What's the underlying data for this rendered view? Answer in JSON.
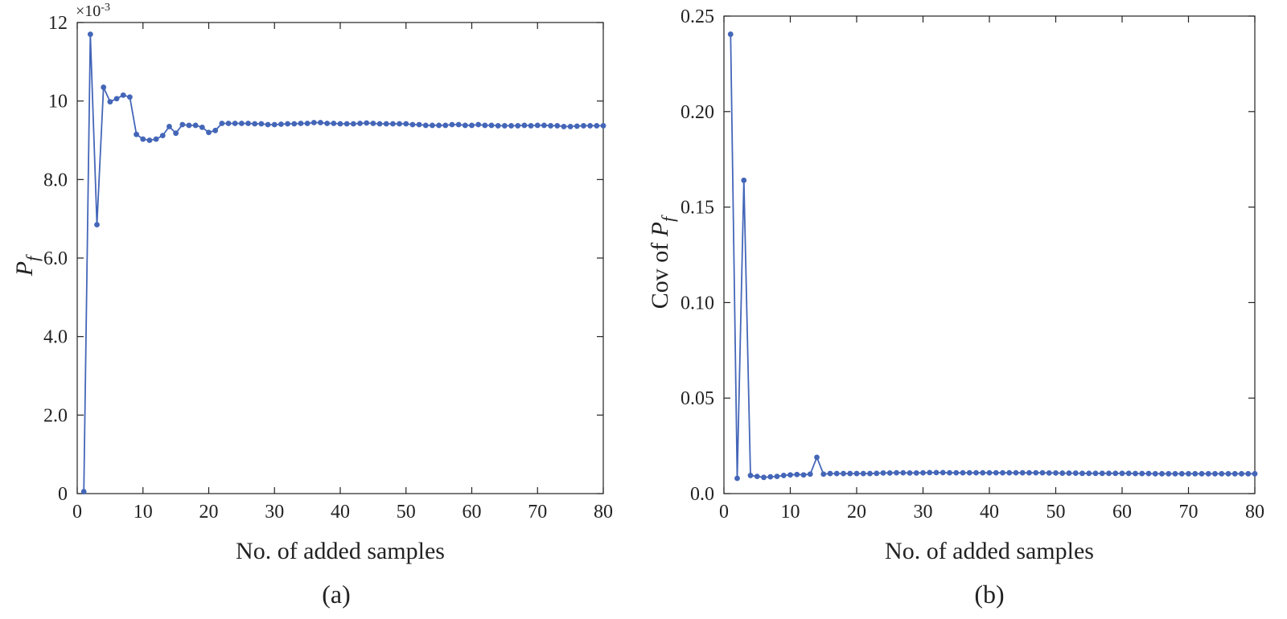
{
  "chart_data": [
    {
      "type": "line",
      "caption": "(a)",
      "xlabel": "No. of added samples",
      "ylabel_main": "P",
      "ylabel_sub": "f",
      "ylabel_prefix": "",
      "y_multiplier": "×10",
      "y_multiplier_exp": "-3",
      "xlim": [
        0,
        80
      ],
      "ylim": [
        0,
        12
      ],
      "x_ticks": [
        0,
        10,
        20,
        30,
        40,
        50,
        60,
        70,
        80
      ],
      "x_tick_labels": [
        "0",
        "10",
        "20",
        "30",
        "40",
        "50",
        "60",
        "70",
        "80"
      ],
      "y_ticks": [
        0,
        2,
        4,
        6,
        8,
        10,
        12
      ],
      "y_tick_labels": [
        "0",
        "2.0",
        "4.0",
        "6.0",
        "8.0",
        "10",
        "12"
      ],
      "color": "#4466b8",
      "series": [
        {
          "x": [
            1,
            2,
            3,
            4,
            5,
            6,
            7,
            8,
            9,
            10,
            11,
            12,
            13,
            14,
            15,
            16,
            17,
            18,
            19,
            20,
            21,
            22,
            23,
            24,
            25,
            26,
            27,
            28,
            29,
            30,
            31,
            32,
            33,
            34,
            35,
            36,
            37,
            38,
            39,
            40,
            41,
            42,
            43,
            44,
            45,
            46,
            47,
            48,
            49,
            50,
            51,
            52,
            53,
            54,
            55,
            56,
            57,
            58,
            59,
            60,
            61,
            62,
            63,
            64,
            65,
            66,
            67,
            68,
            69,
            70,
            71,
            72,
            73,
            74,
            75,
            76,
            77,
            78,
            79,
            80
          ],
          "y": [
            0.05,
            11.7,
            6.85,
            10.35,
            9.98,
            10.06,
            10.15,
            10.1,
            9.15,
            9.03,
            9.0,
            9.03,
            9.12,
            9.35,
            9.18,
            9.4,
            9.38,
            9.38,
            9.33,
            9.2,
            9.25,
            9.43,
            9.43,
            9.43,
            9.43,
            9.43,
            9.42,
            9.42,
            9.4,
            9.4,
            9.41,
            9.42,
            9.42,
            9.43,
            9.43,
            9.45,
            9.45,
            9.43,
            9.43,
            9.42,
            9.42,
            9.42,
            9.43,
            9.44,
            9.43,
            9.42,
            9.42,
            9.42,
            9.42,
            9.42,
            9.4,
            9.4,
            9.38,
            9.38,
            9.38,
            9.38,
            9.4,
            9.4,
            9.38,
            9.38,
            9.4,
            9.38,
            9.38,
            9.37,
            9.37,
            9.37,
            9.37,
            9.38,
            9.37,
            9.38,
            9.38,
            9.37,
            9.37,
            9.35,
            9.35,
            9.36,
            9.37,
            9.37,
            9.37,
            9.37
          ]
        }
      ]
    },
    {
      "type": "line",
      "caption": "(b)",
      "xlabel": "No. of added samples",
      "ylabel_prefix": "Cov of ",
      "ylabel_main": "P",
      "ylabel_sub": "f",
      "xlim": [
        0,
        80
      ],
      "ylim": [
        0,
        0.25
      ],
      "x_ticks": [
        0,
        10,
        20,
        30,
        40,
        50,
        60,
        70,
        80
      ],
      "x_tick_labels": [
        "0",
        "10",
        "20",
        "30",
        "40",
        "50",
        "60",
        "70",
        "80"
      ],
      "y_ticks": [
        0,
        0.05,
        0.1,
        0.15,
        0.2,
        0.25
      ],
      "y_tick_labels": [
        "0.0",
        "0.05",
        "0.10",
        "0.15",
        "0.20",
        "0.25"
      ],
      "color": "#4466b8",
      "series": [
        {
          "x": [
            1,
            2,
            3,
            4,
            5,
            6,
            7,
            8,
            9,
            10,
            11,
            12,
            13,
            14,
            15,
            16,
            17,
            18,
            19,
            20,
            21,
            22,
            23,
            24,
            25,
            26,
            27,
            28,
            29,
            30,
            31,
            32,
            33,
            34,
            35,
            36,
            37,
            38,
            39,
            40,
            41,
            42,
            43,
            44,
            45,
            46,
            47,
            48,
            49,
            50,
            51,
            52,
            53,
            54,
            55,
            56,
            57,
            58,
            59,
            60,
            61,
            62,
            63,
            64,
            65,
            66,
            67,
            68,
            69,
            70,
            71,
            72,
            73,
            74,
            75,
            76,
            77,
            78,
            79,
            80
          ],
          "y": [
            0.2405,
            0.008,
            0.164,
            0.0095,
            0.009,
            0.0085,
            0.0088,
            0.009,
            0.0095,
            0.0098,
            0.01,
            0.0098,
            0.0102,
            0.019,
            0.0102,
            0.0105,
            0.0105,
            0.0105,
            0.0105,
            0.0105,
            0.0105,
            0.0105,
            0.0106,
            0.0108,
            0.0108,
            0.0109,
            0.0109,
            0.0108,
            0.0108,
            0.0109,
            0.011,
            0.011,
            0.011,
            0.0109,
            0.0109,
            0.0109,
            0.0109,
            0.0109,
            0.0109,
            0.0109,
            0.0109,
            0.0109,
            0.0109,
            0.0109,
            0.0109,
            0.0109,
            0.0109,
            0.0109,
            0.0108,
            0.0108,
            0.0107,
            0.0107,
            0.0107,
            0.0106,
            0.0106,
            0.0106,
            0.0106,
            0.0106,
            0.0106,
            0.0106,
            0.0106,
            0.0105,
            0.0105,
            0.0105,
            0.0104,
            0.0104,
            0.0104,
            0.0104,
            0.0104,
            0.0104,
            0.0104,
            0.0104,
            0.0104,
            0.0104,
            0.0104,
            0.0104,
            0.0104,
            0.0104,
            0.0104,
            0.0104
          ]
        }
      ]
    }
  ]
}
